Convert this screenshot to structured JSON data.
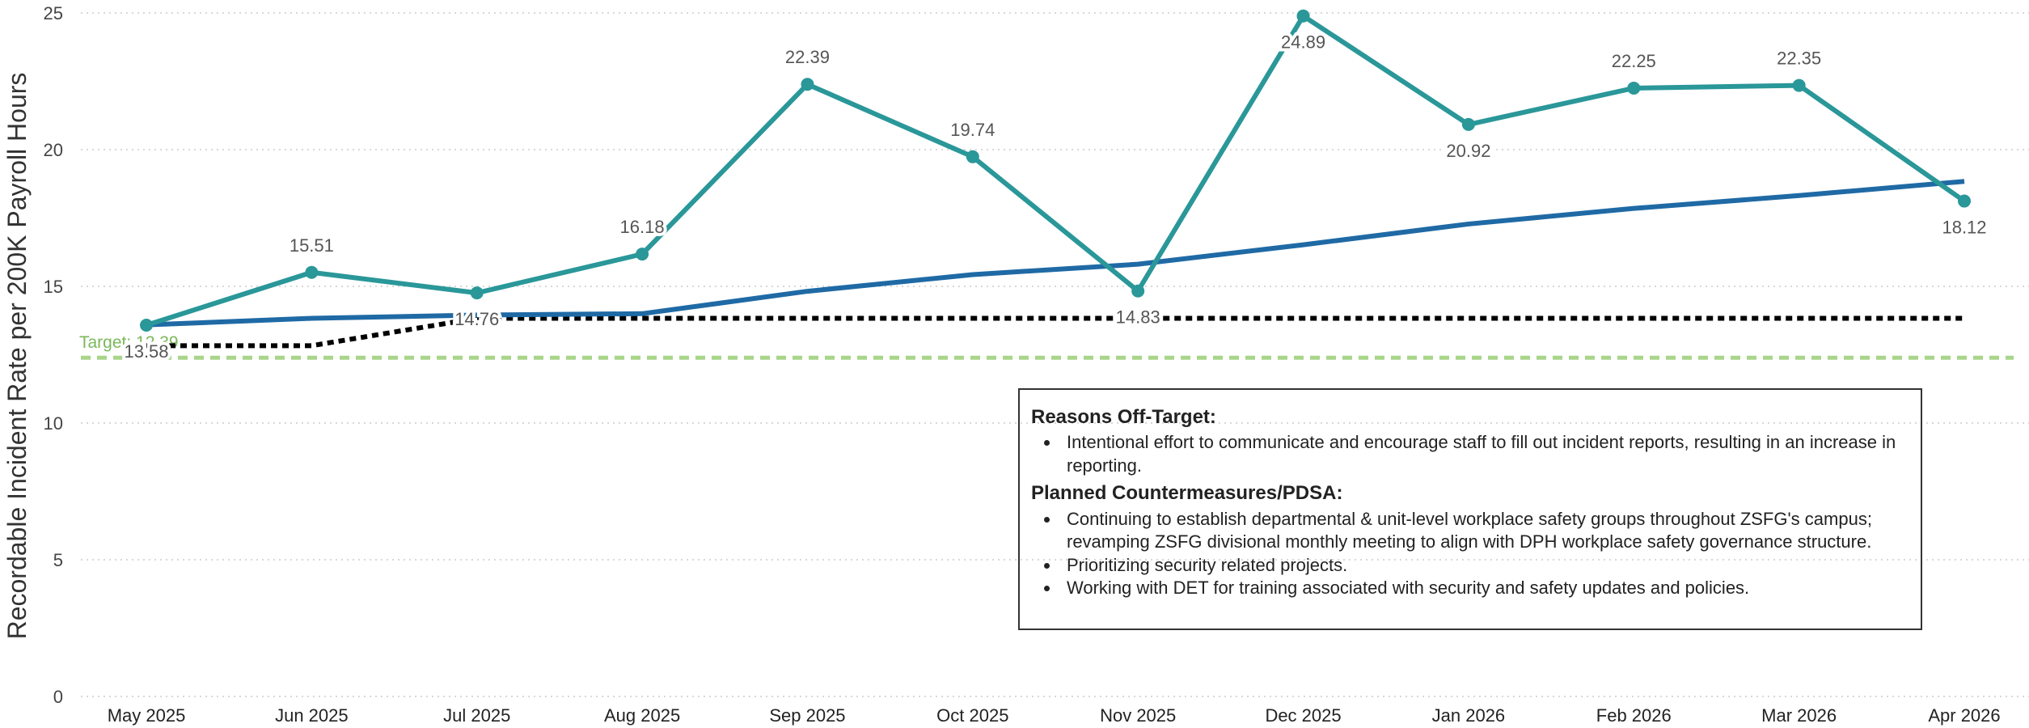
{
  "chart_data": {
    "type": "line",
    "y_label": "Recordable Incident Rate per 200K Payroll Hours",
    "categories": [
      "May 2025",
      "Jun 2025",
      "Jul 2025",
      "Aug 2025",
      "Sep 2025",
      "Oct 2025",
      "Nov 2025",
      "Dec 2025",
      "Jan 2026",
      "Feb 2026",
      "Mar 2026",
      "Apr 2026"
    ],
    "series": [
      {
        "color": "#2a9799",
        "values": [
          13.58,
          15.51,
          14.76,
          16.18,
          22.39,
          19.74,
          14.83,
          24.89,
          20.92,
          22.25,
          22.35,
          18.12
        ],
        "markers": true,
        "labels": true,
        "style": "solid"
      },
      {
        "color": "#1f6aa5",
        "values": [
          13.59,
          13.83,
          13.95,
          14.0,
          14.82,
          15.43,
          15.81,
          16.52,
          17.28,
          17.85,
          18.32,
          18.84
        ],
        "markers": false,
        "labels": false,
        "style": "solid"
      },
      {
        "color": "#000000",
        "values": [
          12.83,
          12.83,
          13.83,
          13.83,
          13.83,
          13.83,
          13.83,
          13.83,
          13.83,
          13.83,
          13.83,
          13.83
        ],
        "markers": false,
        "labels": false,
        "style": "dotted"
      }
    ],
    "target": {
      "value": 12.39,
      "label": "Target: 12.39",
      "color": "#a8d58a"
    },
    "ylim": [
      0,
      25
    ],
    "yticks": [
      0,
      5,
      10,
      15,
      20,
      25
    ],
    "grid": true
  },
  "annotation": {
    "sections": [
      {
        "heading": "Reasons Off-Target:",
        "bullets": [
          "Intentional effort to communicate and encourage staff to fill out incident reports, resulting in an increase in reporting."
        ]
      },
      {
        "heading": "Planned Countermeasures/PDSA:",
        "bullets": [
          "Continuing to establish departmental & unit-level workplace safety groups throughout ZSFG's campus; revamping ZSFG divisional monthly meeting to align with DPH workplace safety governance structure.",
          "Prioritizing security related projects.",
          "Working with DET for training associated with security and safety updates and policies."
        ]
      }
    ]
  }
}
